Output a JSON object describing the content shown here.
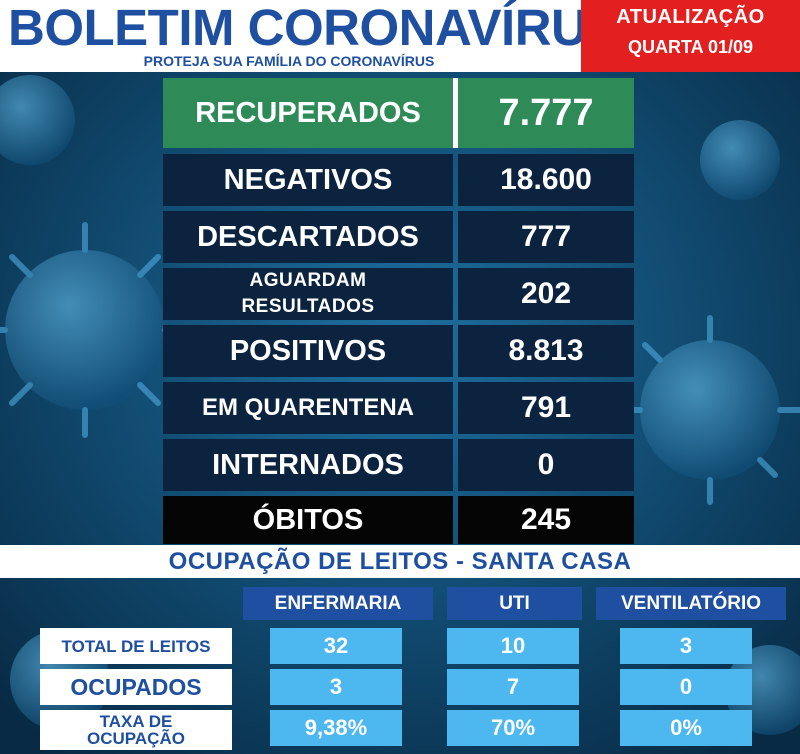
{
  "header": {
    "title": "BOLETIM CORONAVÍRUS",
    "subtitle": "PROTEJA SUA FAMÍLIA DO CORONAVÍRUS",
    "update_label": "ATUALIZAÇÃO",
    "update_date": "QUARTA 01/09"
  },
  "stats": [
    {
      "label": "RECUPERADOS",
      "value": "7.777"
    },
    {
      "label": "NEGATIVOS",
      "value": "18.600"
    },
    {
      "label": "DESCARTADOS",
      "value": "777"
    },
    {
      "label_line1": "AGUARDAM",
      "label_line2": "RESULTADOS",
      "value": "202"
    },
    {
      "label": "POSITIVOS",
      "value": "8.813"
    },
    {
      "label": "EM QUARENTENA",
      "value": "791"
    },
    {
      "label": "INTERNADOS",
      "value": "0"
    },
    {
      "label": "ÓBITOS",
      "value": "245"
    }
  ],
  "beds": {
    "title": "OCUPAÇÃO DE LEITOS - SANTA CASA",
    "columns": [
      "ENFERMARIA",
      "UTI",
      "VENTILATÓRIO"
    ],
    "rows": [
      {
        "label": "TOTAL DE LEITOS",
        "values": [
          "32",
          "10",
          "3"
        ]
      },
      {
        "label": "OCUPADOS",
        "values": [
          "3",
          "7",
          "0"
        ]
      },
      {
        "label_line1": "TAXA DE",
        "label_line2": "OCUPAÇÃO",
        "values": [
          "9,38%",
          "70%",
          "0%"
        ]
      }
    ]
  },
  "colors": {
    "brand_blue": "#1f4fa0",
    "alert_red": "#e41f1f",
    "recovered_green": "#2e8b57",
    "cell_blue": "#4db8f0",
    "row_navy": "#0c2340"
  }
}
